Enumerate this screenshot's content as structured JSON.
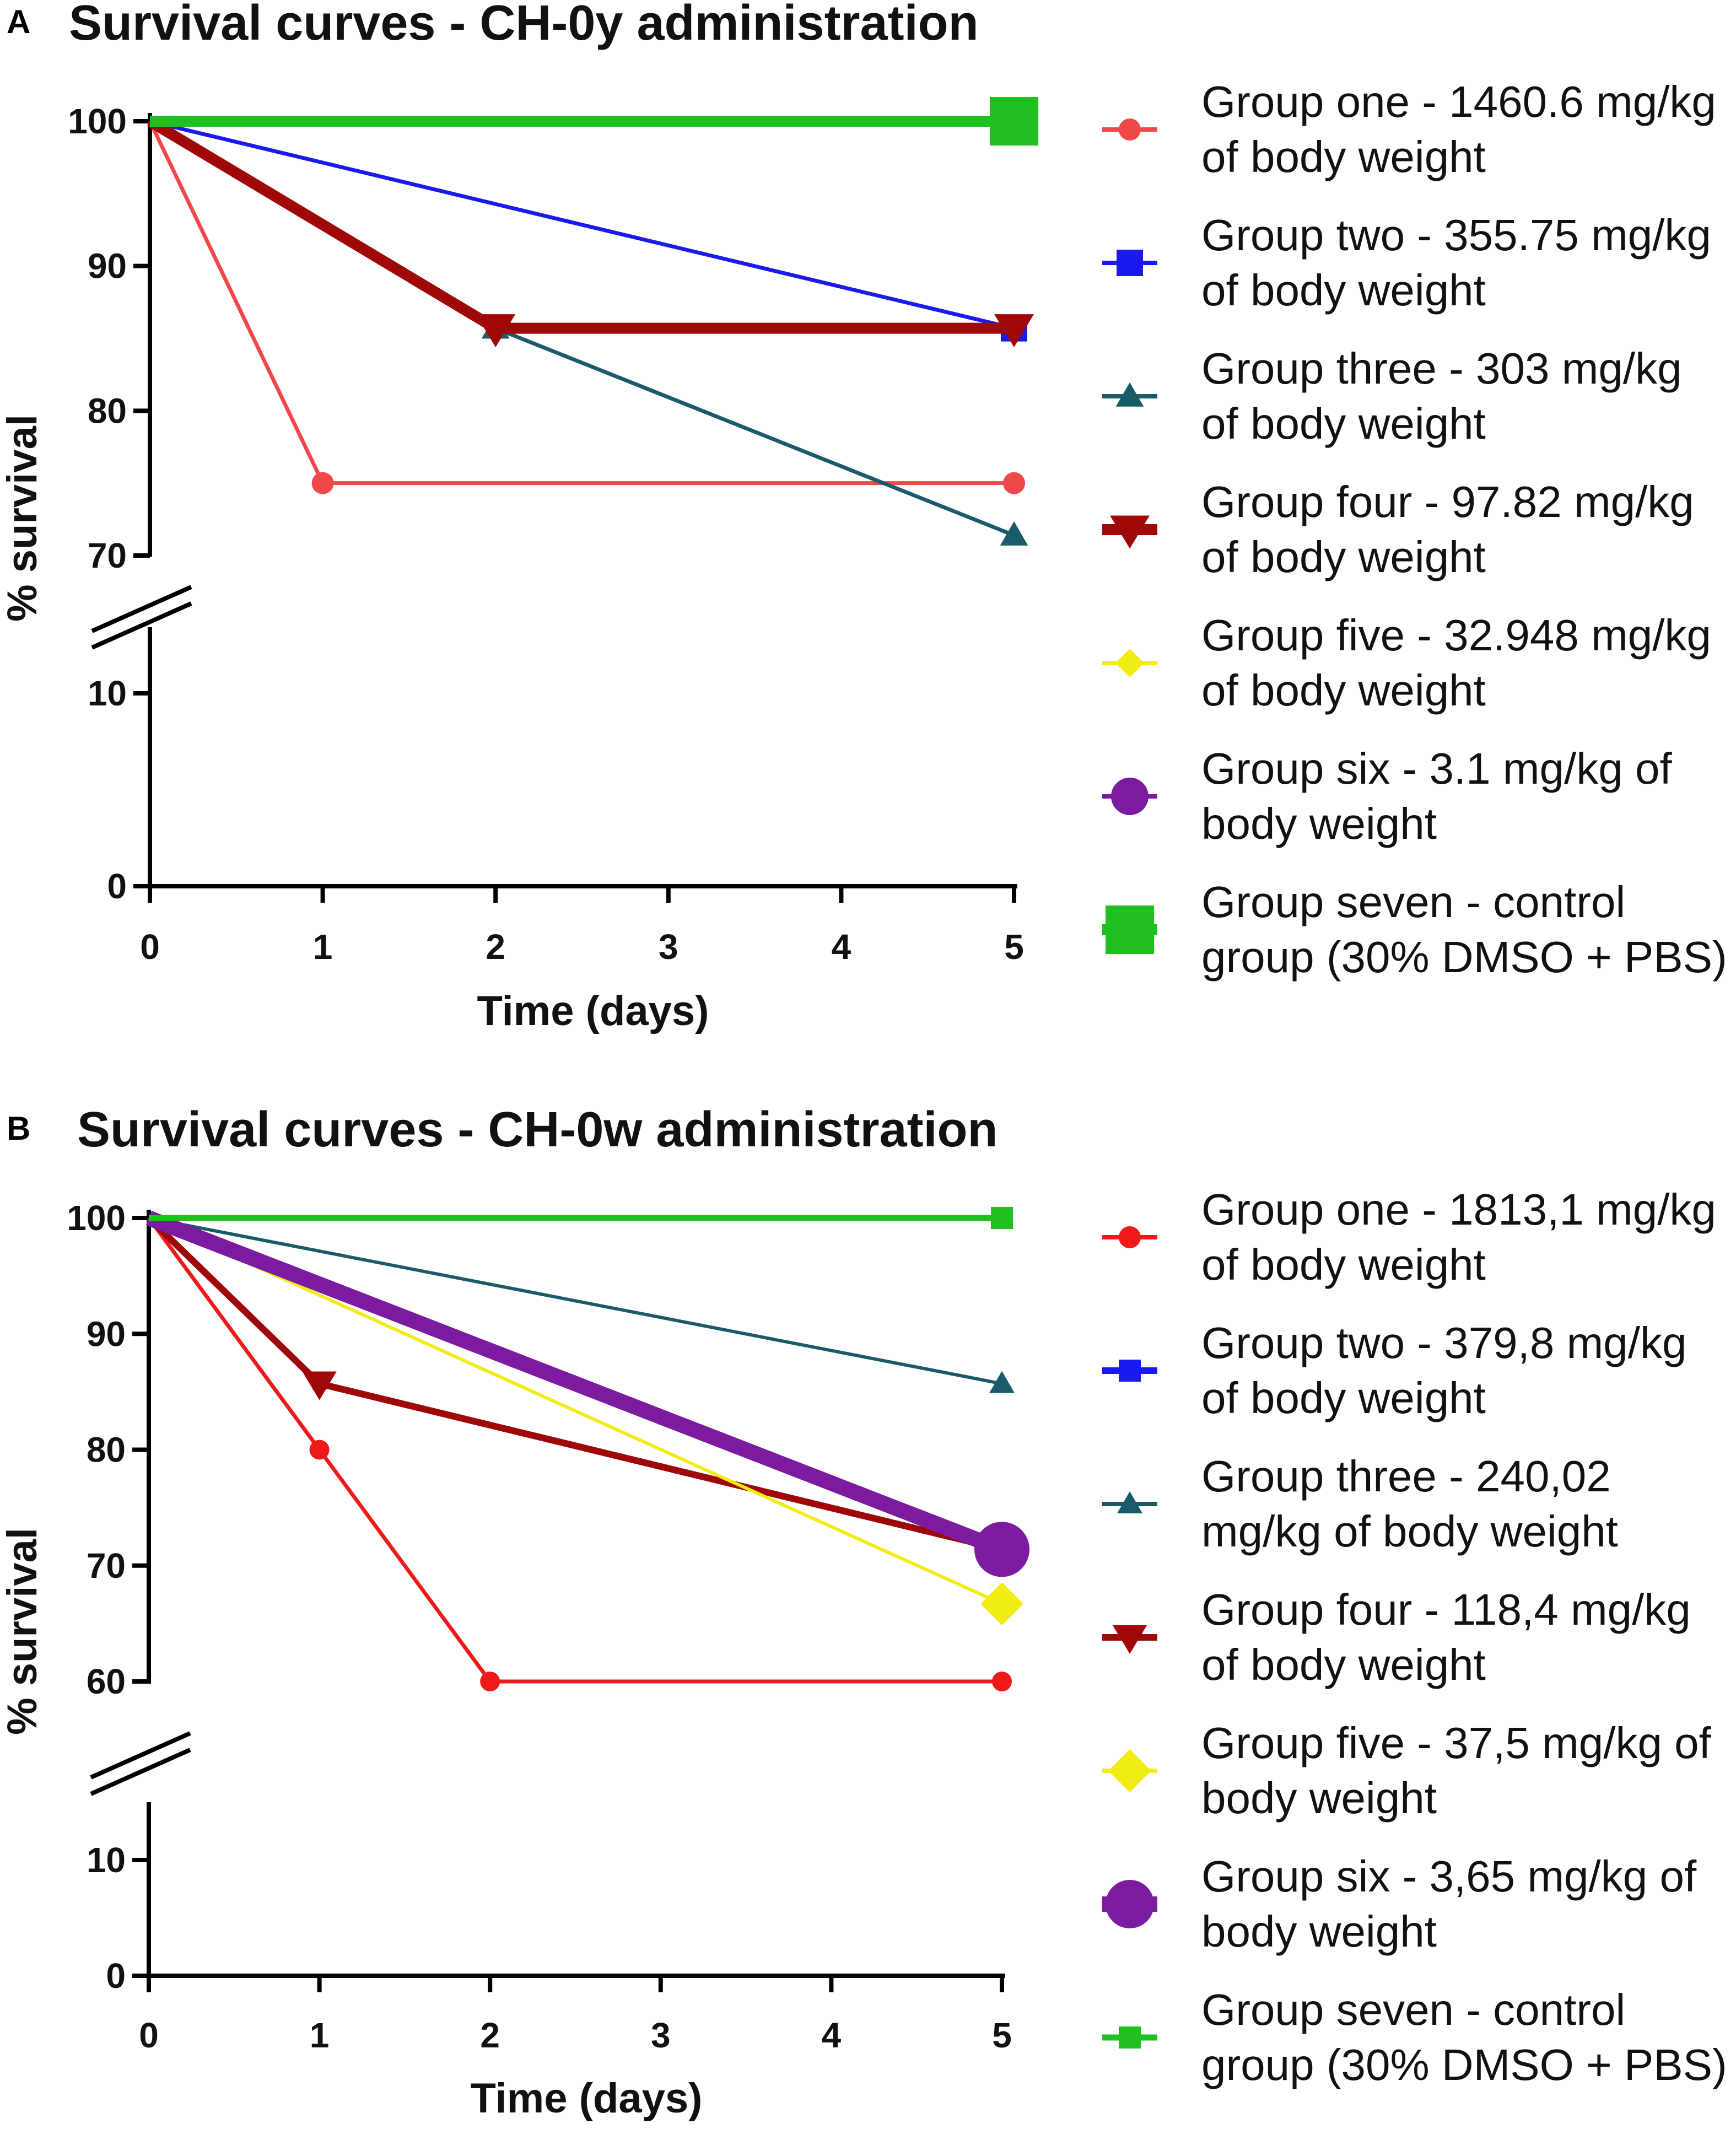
{
  "figure": {
    "panels": [
      {
        "id": "A",
        "letter": "A",
        "title": "Survival curves - CH-0y administration",
        "legend": [
          {
            "label": "Group one - 1460.6 mg/kg of body weight",
            "color": "#f04848",
            "marker": "circle"
          },
          {
            "label": "Group two - 355.75 mg/kg of body weight",
            "color": "#1a1aee",
            "marker": "square"
          },
          {
            "label": "Group three - 303 mg/kg of body weight",
            "color": "#1b5b69",
            "marker": "triangle-up"
          },
          {
            "label": "Group four - 97.82 mg/kg of body weight",
            "color": "#a00808",
            "marker": "triangle-down"
          },
          {
            "label": "Group five - 32.948 mg/kg of body weight",
            "color": "#f2ec15",
            "marker": "diamond"
          },
          {
            "label": "Group six - 3.1 mg/kg of body weight",
            "color": "#7d1ba0",
            "marker": "circle"
          },
          {
            "label": "Group seven - control group (30% DMSO + PBS)",
            "color": "#20c020",
            "marker": "square"
          }
        ]
      },
      {
        "id": "B",
        "letter": "B",
        "title": "Survival curves - CH-0w administration",
        "legend": [
          {
            "label": "Group one - 1813,1 mg/kg of body weight",
            "color": "#ee1a1a",
            "marker": "circle"
          },
          {
            "label": "Group two - 379,8 mg/kg of body weight",
            "color": "#1a1aee",
            "marker": "square"
          },
          {
            "label": "Group three - 240,02 mg/kg of body weight",
            "color": "#1b5b69",
            "marker": "triangle-up"
          },
          {
            "label": "Group four - 118,4 mg/kg of body weight",
            "color": "#a00808",
            "marker": "triangle-down"
          },
          {
            "label": "Group five - 37,5 mg/kg of body weight",
            "color": "#f2ec15",
            "marker": "diamond"
          },
          {
            "label": "Group six - 3,65 mg/kg of body weight",
            "color": "#7d1ba0",
            "marker": "circle"
          },
          {
            "label": "Group seven - control group (30% DMSO + PBS)",
            "color": "#20c020",
            "marker": "square"
          }
        ]
      }
    ]
  },
  "chart_data": [
    {
      "type": "line",
      "panel": "A",
      "title": "Survival curves - CH-0y administration",
      "xlabel": "Time (days)",
      "ylabel": "% survival",
      "x_ticks": [
        0,
        1,
        2,
        3,
        4,
        5
      ],
      "y_ticks_lower": [
        0,
        10
      ],
      "y_ticks_upper": [
        70,
        80,
        90,
        100
      ],
      "y_break": [
        13,
        67
      ],
      "xlim": [
        0,
        5
      ],
      "series": [
        {
          "name": "Group one - 1460.6 mg/kg of body weight",
          "color": "#f04848",
          "marker": "circle",
          "x": [
            0,
            1,
            5
          ],
          "y": [
            100,
            75,
            75
          ]
        },
        {
          "name": "Group two - 355.75 mg/kg of body weight",
          "color": "#1a1aee",
          "marker": "square",
          "x": [
            0,
            5
          ],
          "y": [
            100,
            85.7
          ]
        },
        {
          "name": "Group three - 303 mg/kg of body weight",
          "color": "#1b5b69",
          "marker": "triangle-up",
          "x": [
            0,
            2,
            5
          ],
          "y": [
            100,
            85.7,
            71.4
          ]
        },
        {
          "name": "Group four - 97.82 mg/kg of body weight",
          "color": "#a00808",
          "marker": "triangle-down",
          "x": [
            0,
            2,
            5
          ],
          "y": [
            100,
            85.7,
            85.7
          ]
        },
        {
          "name": "Group five - 32.948 mg/kg of body weight",
          "color": "#f2ec15",
          "marker": "diamond",
          "x": [
            0,
            5
          ],
          "y": [
            100,
            100
          ]
        },
        {
          "name": "Group six - 3.1 mg/kg of body weight",
          "color": "#7d1ba0",
          "marker": "circle",
          "x": [
            0,
            5
          ],
          "y": [
            100,
            100
          ]
        },
        {
          "name": "Group seven - control group (30% DMSO + PBS)",
          "color": "#20c020",
          "marker": "square",
          "x": [
            0,
            5
          ],
          "y": [
            100,
            100
          ]
        }
      ]
    },
    {
      "type": "line",
      "panel": "B",
      "title": "Survival curves - CH-0w administration",
      "xlabel": "Time (days)",
      "ylabel": "% survival",
      "x_ticks": [
        0,
        1,
        2,
        3,
        4,
        5
      ],
      "y_ticks_lower": [
        0,
        10
      ],
      "y_ticks_upper": [
        60,
        70,
        80,
        90,
        100
      ],
      "y_break": [
        13,
        57
      ],
      "xlim": [
        0,
        5
      ],
      "series": [
        {
          "name": "Group one - 1813,1 mg/kg of body weight",
          "color": "#ee1a1a",
          "marker": "circle",
          "x": [
            0,
            1,
            2,
            5
          ],
          "y": [
            100,
            80,
            60,
            60
          ]
        },
        {
          "name": "Group two - 379,8 mg/kg of body weight",
          "color": "#1a1aee",
          "marker": "square",
          "x": [
            0,
            1,
            5
          ],
          "y": [
            100,
            85.7,
            71.4
          ]
        },
        {
          "name": "Group three - 240,02 mg/kg of body weight",
          "color": "#1b5b69",
          "marker": "triangle-up",
          "x": [
            0,
            5
          ],
          "y": [
            100,
            85.7
          ]
        },
        {
          "name": "Group four - 118,4 mg/kg of body weight",
          "color": "#a00808",
          "marker": "triangle-down",
          "x": [
            0,
            1,
            5
          ],
          "y": [
            100,
            85.7,
            71.4
          ]
        },
        {
          "name": "Group five - 37,5 mg/kg of body weight",
          "color": "#f2ec15",
          "marker": "diamond",
          "x": [
            0,
            5
          ],
          "y": [
            100,
            66.7
          ]
        },
        {
          "name": "Group six - 3,65 mg/kg of body weight",
          "color": "#7d1ba0",
          "marker": "circle",
          "x": [
            0,
            5
          ],
          "y": [
            100,
            71.4
          ]
        },
        {
          "name": "Group seven - control group (30% DMSO + PBS)",
          "color": "#20c020",
          "marker": "square",
          "x": [
            0,
            5
          ],
          "y": [
            100,
            100
          ]
        }
      ]
    }
  ]
}
